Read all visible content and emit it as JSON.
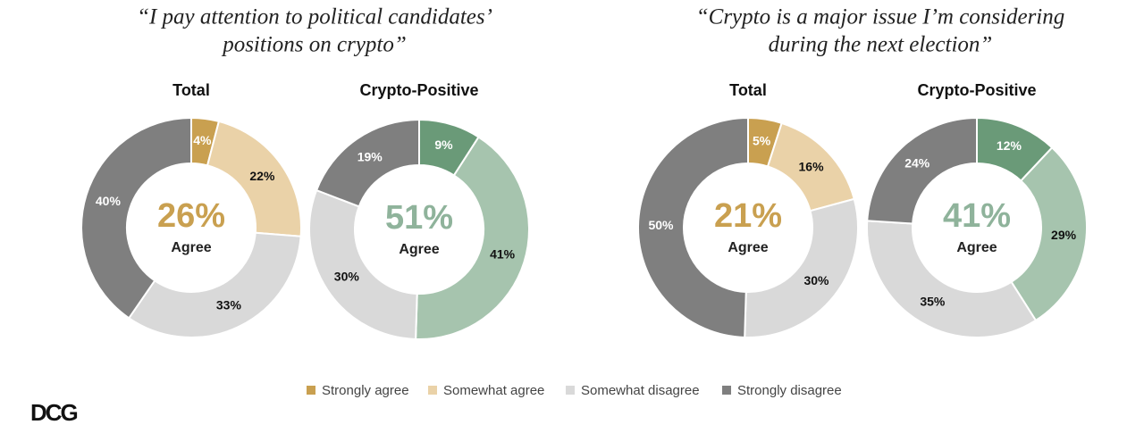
{
  "panels": [
    {
      "title_lines": [
        "“I pay attention to political candidates’",
        "positions on crypto”"
      ]
    },
    {
      "title_lines": [
        "“Crypto is a major issue I’m considering",
        "during the next election”"
      ]
    }
  ],
  "chart_data": [
    {
      "type": "donut",
      "title": "Total",
      "values": [
        4,
        22,
        33,
        40
      ],
      "value_labels": [
        "4%",
        "22%",
        "33%",
        "40%"
      ],
      "colors": [
        "#c9a050",
        "#ead2a8",
        "#d9d9d9",
        "#7f7f7f"
      ],
      "center_value": 26,
      "center_value_label": "26%",
      "center_text": "Agree",
      "center_color": "#c9a050"
    },
    {
      "type": "donut",
      "title": "Crypto-Positive",
      "values": [
        9,
        41,
        30,
        19
      ],
      "value_labels": [
        "9%",
        "41%",
        "30%",
        "19%"
      ],
      "colors": [
        "#6a9a78",
        "#a6c4ae",
        "#d9d9d9",
        "#7f7f7f"
      ],
      "center_value": 51,
      "center_value_label": "51%",
      "center_text": "Agree",
      "center_color": "#8fb39b"
    },
    {
      "type": "donut",
      "title": "Total",
      "values": [
        5,
        16,
        30,
        50
      ],
      "value_labels": [
        "5%",
        "16%",
        "30%",
        "50%"
      ],
      "colors": [
        "#c9a050",
        "#ead2a8",
        "#d9d9d9",
        "#7f7f7f"
      ],
      "center_value": 21,
      "center_value_label": "21%",
      "center_text": "Agree",
      "center_color": "#c9a050"
    },
    {
      "type": "donut",
      "title": "Crypto-Positive",
      "values": [
        12,
        29,
        35,
        24
      ],
      "value_labels": [
        "12%",
        "29%",
        "35%",
        "24%"
      ],
      "colors": [
        "#6a9a78",
        "#a6c4ae",
        "#d9d9d9",
        "#7f7f7f"
      ],
      "center_value": 41,
      "center_value_label": "41%",
      "center_text": "Agree",
      "center_color": "#8fb39b"
    }
  ],
  "legend": {
    "labels": [
      "Strongly agree",
      "Somewhat agree",
      "Somewhat disagree",
      "Strongly disagree"
    ],
    "colors": [
      "#c9a050",
      "#ead2a8",
      "#d9d9d9",
      "#7f7f7f"
    ]
  },
  "logo": "DCG"
}
